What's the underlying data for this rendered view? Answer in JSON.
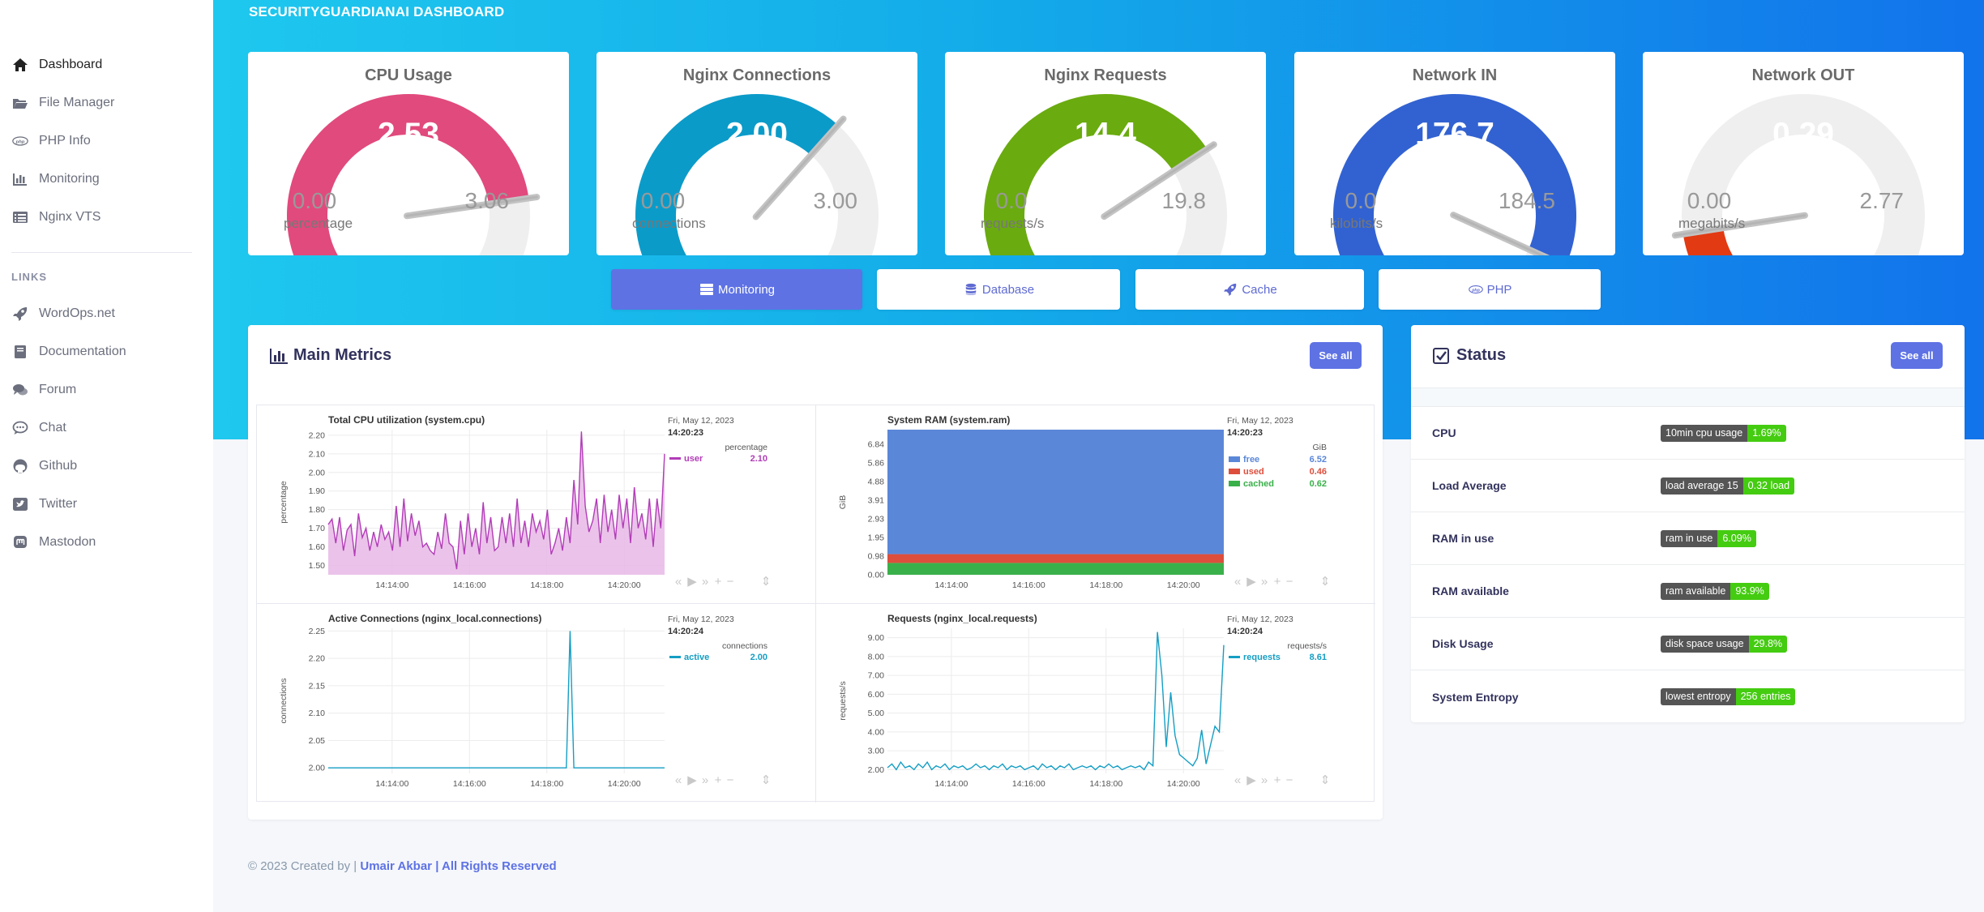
{
  "app": {
    "title": "SECURITYGUARDIANAI DASHBOARD"
  },
  "sidebar": {
    "items": [
      {
        "label": "Dashboard",
        "icon": "home-icon",
        "active": true
      },
      {
        "label": "File Manager",
        "icon": "folder-icon"
      },
      {
        "label": "PHP Info",
        "icon": "php-icon"
      },
      {
        "label": "Monitoring",
        "icon": "chart-icon"
      },
      {
        "label": "Nginx VTS",
        "icon": "list-icon"
      }
    ],
    "links_heading": "LINKS",
    "links": [
      {
        "label": "WordOps.net",
        "icon": "rocket-icon"
      },
      {
        "label": "Documentation",
        "icon": "book-icon"
      },
      {
        "label": "Forum",
        "icon": "comments-icon"
      },
      {
        "label": "Chat",
        "icon": "chat-icon"
      },
      {
        "label": "Github",
        "icon": "github-icon"
      },
      {
        "label": "Twitter",
        "icon": "twitter-icon"
      },
      {
        "label": "Mastodon",
        "icon": "mastodon-icon"
      }
    ]
  },
  "gauges": [
    {
      "title": "CPU Usage",
      "value": "2.53",
      "min": "0.00",
      "max": "3.06",
      "unit": "percentage",
      "fraction": 0.827,
      "color": "#e14a7c"
    },
    {
      "title": "Nginx Connections",
      "value": "2.00",
      "min": "0.00",
      "max": "3.00",
      "unit": "connections",
      "fraction": 0.667,
      "color": "#0b9bc9"
    },
    {
      "title": "Nginx Requests",
      "value": "14.4",
      "min": "0.0",
      "max": "19.8",
      "unit": "requests/s",
      "fraction": 0.727,
      "color": "#6aab0f"
    },
    {
      "title": "Network IN",
      "value": "176.7",
      "min": "0.0",
      "max": "184.5",
      "unit": "kilobits/s",
      "fraction": 0.958,
      "color": "#3262d1"
    },
    {
      "title": "Network OUT",
      "value": "0.29",
      "min": "0.00",
      "max": "2.77",
      "unit": "megabits/s",
      "fraction": 0.105,
      "color": "#e23a13"
    }
  ],
  "tabs": [
    {
      "label": "Monitoring",
      "icon": "server-icon",
      "active": true
    },
    {
      "label": "Database",
      "icon": "database-icon"
    },
    {
      "label": "Cache",
      "icon": "rocket-icon"
    },
    {
      "label": "PHP",
      "icon": "php-icon"
    }
  ],
  "metrics": {
    "title": "Main Metrics",
    "see_all": "See all"
  },
  "status": {
    "title": "Status",
    "see_all": "See all",
    "rows": [
      {
        "label": "CPU",
        "key": "10min cpu usage",
        "value": "1.69%"
      },
      {
        "label": "Load Average",
        "key": "load average 15",
        "value": "0.32 load"
      },
      {
        "label": "RAM in use",
        "key": "ram in use",
        "value": "6.09%"
      },
      {
        "label": "RAM available",
        "key": "ram available",
        "value": "93.9%"
      },
      {
        "label": "Disk Usage",
        "key": "disk space usage",
        "value": "29.8%"
      },
      {
        "label": "System Entropy",
        "key": "lowest entropy",
        "value": "256 entries"
      }
    ]
  },
  "footer": {
    "prefix": "© 2023 Created by |",
    "author": "Umair Akbar | All Rights Reserved"
  },
  "chart_data": [
    {
      "type": "area",
      "title": "Total CPU utilization (system.cpu)",
      "ylabel": "percentage",
      "date": "Fri, May 12, 2023",
      "time": "14:20:23",
      "unit": "percentage",
      "color": "#b23cb8",
      "fill": "#e7b8e6",
      "ylim": [
        1.45,
        2.23
      ],
      "yticks": [
        "2.20",
        "2.10",
        "2.00",
        "1.90",
        "1.80",
        "1.70",
        "1.60",
        "1.50"
      ],
      "ytick_values": [
        2.2,
        2.1,
        2.0,
        1.9,
        1.8,
        1.7,
        1.6,
        1.5
      ],
      "xticks": [
        "14:14:00",
        "14:16:00",
        "14:18:00",
        "14:20:00"
      ],
      "xtick_pos": [
        0.19,
        0.42,
        0.65,
        0.88
      ],
      "series": [
        {
          "name": "user",
          "value": "2.10",
          "values": [
            1.72,
            1.75,
            1.62,
            1.76,
            1.58,
            1.69,
            1.72,
            1.55,
            1.78,
            1.65,
            1.7,
            1.58,
            1.68,
            1.6,
            1.72,
            1.64,
            1.68,
            1.58,
            1.82,
            1.6,
            1.86,
            1.63,
            1.78,
            1.66,
            1.74,
            1.6,
            1.62,
            1.58,
            1.56,
            1.68,
            1.59,
            1.78,
            1.62,
            1.6,
            1.48,
            1.74,
            1.56,
            1.78,
            1.6,
            1.7,
            1.56,
            1.84,
            1.62,
            1.76,
            1.58,
            1.6,
            1.76,
            1.62,
            1.78,
            1.6,
            1.86,
            1.62,
            1.74,
            1.6,
            1.78,
            1.68,
            1.74,
            1.64,
            1.8,
            1.56,
            1.62,
            1.7,
            1.58,
            1.76,
            1.62,
            1.96,
            1.72,
            2.22,
            1.82,
            1.68,
            1.74,
            1.86,
            1.62,
            1.88,
            1.68,
            1.8,
            1.64,
            1.88,
            1.7,
            1.86,
            1.62,
            1.92,
            1.7,
            1.78,
            1.64,
            1.86,
            1.6,
            1.86,
            1.7,
            2.1
          ]
        }
      ]
    },
    {
      "type": "area",
      "title": "System RAM (system.ram)",
      "ylabel": "GiB",
      "date": "Fri, May 12, 2023",
      "time": "14:20:23",
      "unit": "GiB",
      "ylim": [
        0,
        7.6
      ],
      "yticks": [
        "6.84",
        "5.86",
        "4.88",
        "3.91",
        "2.93",
        "1.95",
        "0.98",
        "0.00"
      ],
      "ytick_values": [
        6.84,
        5.86,
        4.88,
        3.91,
        2.93,
        1.95,
        0.98,
        0.0
      ],
      "xticks": [
        "14:14:00",
        "14:16:00",
        "14:18:00",
        "14:20:00"
      ],
      "xtick_pos": [
        0.19,
        0.42,
        0.65,
        0.88
      ],
      "stacked": true,
      "series": [
        {
          "name": "free",
          "value": "6.52",
          "color": "#5b87d8"
        },
        {
          "name": "used",
          "value": "0.46",
          "color": "#dd4e3c"
        },
        {
          "name": "cached",
          "value": "0.62",
          "color": "#3ab04a"
        }
      ]
    },
    {
      "type": "line",
      "title": "Active Connections (nginx_local.connections)",
      "ylabel": "connections",
      "date": "Fri, May 12, 2023",
      "time": "14:20:24",
      "unit": "connections",
      "color": "#159ec4",
      "ylim": [
        1.99,
        2.255
      ],
      "yticks": [
        "2.25",
        "2.20",
        "2.15",
        "2.10",
        "2.05",
        "2.00"
      ],
      "ytick_values": [
        2.25,
        2.2,
        2.15,
        2.1,
        2.05,
        2.0
      ],
      "xticks": [
        "14:14:00",
        "14:16:00",
        "14:18:00",
        "14:20:00"
      ],
      "xtick_pos": [
        0.19,
        0.42,
        0.65,
        0.88
      ],
      "series": [
        {
          "name": "active",
          "value": "2.00",
          "values": [
            2.0,
            2.0,
            2.0,
            2.0,
            2.0,
            2.0,
            2.0,
            2.0,
            2.0,
            2.0,
            2.0,
            2.0,
            2.0,
            2.0,
            2.0,
            2.0,
            2.0,
            2.0,
            2.0,
            2.0,
            2.0,
            2.0,
            2.0,
            2.0,
            2.0,
            2.0,
            2.0,
            2.0,
            2.0,
            2.0,
            2.0,
            2.0,
            2.0,
            2.0,
            2.0,
            2.0,
            2.0,
            2.0,
            2.0,
            2.0,
            2.0,
            2.0,
            2.0,
            2.0,
            2.0,
            2.0,
            2.0,
            2.0,
            2.0,
            2.0,
            2.0,
            2.0,
            2.0,
            2.0,
            2.0,
            2.0,
            2.0,
            2.0,
            2.0,
            2.0,
            2.0,
            2.0,
            2.0,
            2.0,
            2.25,
            2.0,
            2.0,
            2.0,
            2.0,
            2.0,
            2.0,
            2.0,
            2.0,
            2.0,
            2.0,
            2.0,
            2.0,
            2.0,
            2.0,
            2.0,
            2.0,
            2.0,
            2.0,
            2.0,
            2.0,
            2.0,
            2.0,
            2.0,
            2.0,
            2.0
          ]
        }
      ]
    },
    {
      "type": "line",
      "title": "Requests (nginx_local.requests)",
      "ylabel": "requests/s",
      "date": "Fri, May 12, 2023",
      "time": "14:20:24",
      "unit": "requests/s",
      "color": "#159ec4",
      "ylim": [
        1.8,
        9.5
      ],
      "yticks": [
        "9.00",
        "8.00",
        "7.00",
        "6.00",
        "5.00",
        "4.00",
        "3.00",
        "2.00"
      ],
      "ytick_values": [
        9,
        8,
        7,
        6,
        5,
        4,
        3,
        2
      ],
      "xticks": [
        "14:14:00",
        "14:16:00",
        "14:18:00",
        "14:20:00"
      ],
      "xtick_pos": [
        0.19,
        0.42,
        0.65,
        0.88
      ],
      "series": [
        {
          "name": "requests",
          "value": "8.61",
          "values": [
            2.1,
            2.3,
            2.0,
            2.4,
            2.1,
            2.2,
            2.0,
            2.3,
            2.1,
            2.4,
            2.0,
            2.2,
            2.1,
            2.3,
            2.0,
            2.2,
            2.1,
            2.2,
            2.0,
            2.1,
            2.3,
            2.1,
            2.2,
            2.0,
            2.2,
            2.1,
            2.3,
            2.0,
            2.2,
            2.1,
            2.2,
            2.0,
            2.1,
            2.2,
            2.0,
            2.3,
            2.1,
            2.2,
            2.0,
            2.2,
            2.1,
            2.3,
            2.0,
            2.1,
            2.2,
            2.1,
            2.2,
            2.0,
            2.2,
            2.1,
            2.3,
            2.1,
            2.2,
            2.0,
            2.1,
            2.2,
            2.1,
            2.2,
            2.0,
            2.4,
            2.2,
            9.3,
            7.0,
            3.2,
            6.1,
            3.8,
            2.8,
            2.6,
            2.4,
            2.2,
            2.6,
            4.1,
            2.3,
            3.3,
            4.3,
            4.0,
            8.61
          ]
        }
      ]
    }
  ]
}
